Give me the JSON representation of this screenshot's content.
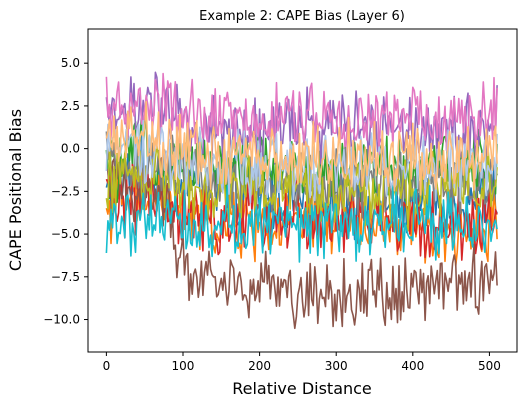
{
  "chart_data": {
    "type": "line",
    "title": "Example 2: CAPE Bias (Layer 6)",
    "xlabel": "Relative Distance",
    "ylabel": "CAPE Positional Bias",
    "xlim": [
      -24,
      536
    ],
    "ylim": [
      -11.9,
      7.0
    ],
    "xticks": [
      0,
      100,
      200,
      300,
      400,
      500
    ],
    "yticks": [
      5.0,
      2.5,
      0.0,
      -2.5,
      -5.0,
      -7.5,
      -10.0
    ],
    "xtick_labels": [
      "0",
      "100",
      "200",
      "300",
      "400",
      "500"
    ],
    "ytick_labels": [
      "5.0",
      "2.5",
      "0.0",
      "−2.5",
      "−5.0",
      "−7.5",
      "−10.0"
    ],
    "grid": false,
    "legend": "none",
    "x_range": [
      0,
      511
    ],
    "series": [
      {
        "color": "#1f77b4",
        "x": [
          0,
          50,
          100,
          150,
          200,
          250,
          300,
          350,
          400,
          450,
          511
        ],
        "values": [
          -2.5,
          -1.5,
          -2.0,
          -2.5,
          -3.0,
          -3.0,
          -3.2,
          -3.0,
          -3.5,
          -3.0,
          -2.5
        ]
      },
      {
        "color": "#ff7f0e",
        "x": [
          0,
          50,
          100,
          150,
          200,
          250,
          300,
          350,
          400,
          450,
          511
        ],
        "values": [
          -3.5,
          -2.5,
          -4.0,
          -4.5,
          -4.5,
          -4.5,
          -4.0,
          -4.5,
          -5.0,
          -5.0,
          -4.5
        ]
      },
      {
        "color": "#2ca02c",
        "x": [
          0,
          50,
          100,
          150,
          200,
          250,
          300,
          350,
          400,
          450,
          511
        ],
        "values": [
          -1.5,
          0.0,
          -0.5,
          -1.0,
          -1.0,
          -1.5,
          -1.2,
          -1.0,
          -1.5,
          -1.0,
          -1.0
        ]
      },
      {
        "color": "#d62728",
        "x": [
          0,
          50,
          100,
          150,
          200,
          250,
          300,
          350,
          400,
          450,
          511
        ],
        "values": [
          -3.0,
          -3.0,
          -4.0,
          -4.5,
          -4.0,
          -4.0,
          -4.5,
          -4.0,
          -4.5,
          -4.5,
          -4.0
        ]
      },
      {
        "color": "#9467bd",
        "x": [
          0,
          50,
          100,
          150,
          200,
          250,
          300,
          350,
          400,
          450,
          511
        ],
        "values": [
          2.0,
          2.5,
          1.5,
          1.0,
          1.0,
          1.5,
          1.2,
          1.5,
          1.5,
          1.0,
          1.5
        ]
      },
      {
        "color": "#8c564b",
        "x": [
          0,
          50,
          80,
          100,
          150,
          200,
          250,
          300,
          350,
          400,
          450,
          511
        ],
        "values": [
          -2.0,
          -2.5,
          -3.0,
          -7.0,
          -7.5,
          -8.0,
          -8.5,
          -8.5,
          -8.5,
          -8.0,
          -8.0,
          -7.5
        ]
      },
      {
        "color": "#e377c2",
        "x": [
          0,
          50,
          100,
          150,
          200,
          250,
          300,
          350,
          400,
          450,
          511
        ],
        "values": [
          2.0,
          2.5,
          2.0,
          1.5,
          1.5,
          2.0,
          1.5,
          1.5,
          2.0,
          1.5,
          2.0
        ]
      },
      {
        "color": "#7f7f7f",
        "x": [
          0,
          50,
          100,
          150,
          200,
          250,
          300,
          350,
          400,
          450,
          511
        ],
        "values": [
          -1.0,
          -1.0,
          -1.5,
          -2.0,
          -2.0,
          -2.0,
          -2.0,
          -2.0,
          -2.0,
          -2.0,
          -2.0
        ]
      },
      {
        "color": "#bcbd22",
        "x": [
          0,
          50,
          100,
          150,
          200,
          250,
          300,
          350,
          400,
          450,
          511
        ],
        "values": [
          -1.5,
          -1.5,
          -2.0,
          -2.5,
          -2.0,
          -2.0,
          -2.5,
          -2.5,
          -2.5,
          -2.0,
          -2.0
        ]
      },
      {
        "color": "#17becf",
        "x": [
          0,
          50,
          100,
          150,
          200,
          250,
          300,
          350,
          400,
          450,
          511
        ],
        "values": [
          -4.5,
          -4.0,
          -4.0,
          -4.5,
          -4.0,
          -4.5,
          -4.0,
          -4.5,
          -4.0,
          -4.5,
          -4.5
        ]
      },
      {
        "color": "#aec7e8",
        "x": [
          0,
          50,
          100,
          150,
          200,
          250,
          300,
          350,
          400,
          450,
          511
        ],
        "values": [
          0.5,
          0.0,
          -0.5,
          -1.0,
          -1.0,
          -1.0,
          -1.0,
          -1.0,
          -1.0,
          -1.0,
          -1.0
        ]
      },
      {
        "color": "#ffbb78",
        "x": [
          0,
          50,
          100,
          150,
          200,
          250,
          300,
          350,
          400,
          450,
          511
        ],
        "values": [
          1.0,
          0.5,
          0.0,
          -0.5,
          -0.5,
          -0.5,
          -0.5,
          -0.5,
          -0.5,
          -0.5,
          0.0
        ]
      }
    ]
  }
}
